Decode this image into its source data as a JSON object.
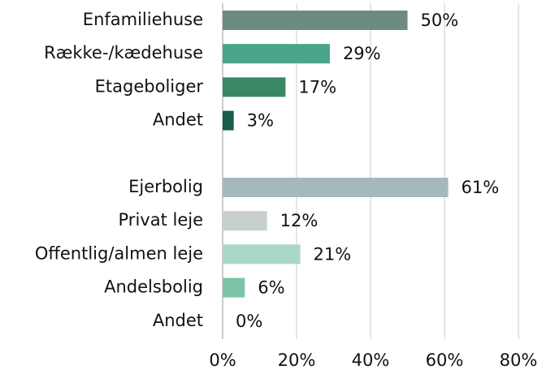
{
  "chart_data": {
    "type": "barh",
    "categories": [
      "Enfamiliehuse",
      "Række-/kædehuse",
      "Etageboliger",
      "Andet",
      null,
      "Ejerbolig",
      "Privat leje",
      "Offentlig/almen leje",
      "Andelsbolig",
      "Andet"
    ],
    "values": [
      50,
      29,
      17,
      3,
      null,
      61,
      12,
      21,
      6,
      0
    ],
    "value_labels": [
      "50%",
      "29%",
      "17%",
      "3%",
      null,
      "61%",
      "12%",
      "21%",
      "6%",
      "0%"
    ],
    "colors": [
      "#6e8b82",
      "#4aa58a",
      "#3a8765",
      "#1a5c4a",
      null,
      "#a6b8bb",
      "#c8d0cd",
      "#a9d8c9",
      "#7cc4a8",
      "#7cc4a8"
    ],
    "xlim": [
      0,
      80
    ],
    "xticks": [
      {
        "value": 0,
        "label": "0%"
      },
      {
        "value": 20,
        "label": "20%"
      },
      {
        "value": 40,
        "label": "40%"
      },
      {
        "value": 60,
        "label": "60%"
      },
      {
        "value": 80,
        "label": "80%"
      }
    ],
    "grid": true
  }
}
